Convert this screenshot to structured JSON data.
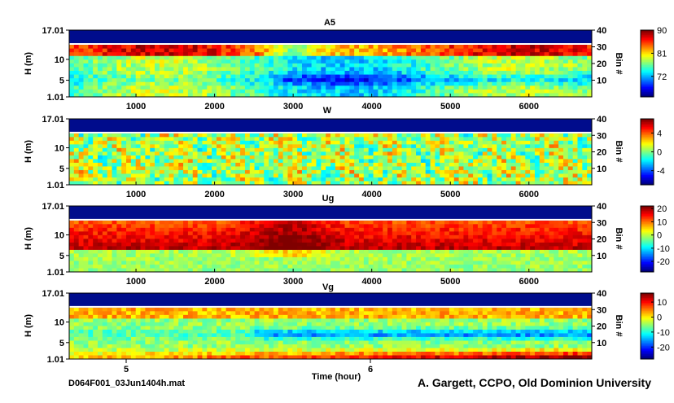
{
  "figure": {
    "filename": "D064F001_03Jun1404h.mat",
    "credit": "A. Gargett, CCPO, Old Dominion University",
    "time_axis_label": "Time (hour)",
    "time_ticks": [
      "5",
      "6"
    ]
  },
  "chart_data": [
    {
      "type": "heatmap",
      "title": "A5",
      "ylabel": "H (m)",
      "ylabel_right": "Bin #",
      "ylim": [
        1.01,
        17.01
      ],
      "yticks": [
        "17.01",
        "10",
        "5",
        "1.01"
      ],
      "yticks_right": [
        "40",
        "30",
        "20",
        "10"
      ],
      "xticks": [
        "1000",
        "2000",
        "3000",
        "4000",
        "5000",
        "6000"
      ],
      "colorbar_ticks": [
        "90",
        "81",
        "72"
      ],
      "clim": [
        64,
        90
      ]
    },
    {
      "type": "heatmap",
      "title": "W",
      "ylabel": "H (m)",
      "ylabel_right": "Bin #",
      "ylim": [
        1.01,
        17.01
      ],
      "yticks": [
        "17.01",
        "10",
        "5",
        "1.01"
      ],
      "yticks_right": [
        "40",
        "30",
        "20",
        "10"
      ],
      "xticks": [
        "1000",
        "2000",
        "3000",
        "4000",
        "5000",
        "6000"
      ],
      "colorbar_ticks": [
        "4",
        "0",
        "-4"
      ],
      "clim": [
        -7,
        7
      ]
    },
    {
      "type": "heatmap",
      "title": "Ug",
      "ylabel": "H (m)",
      "ylabel_right": "Bin #",
      "ylim": [
        1.01,
        17.01
      ],
      "yticks": [
        "17.01",
        "10",
        "5",
        "1.01"
      ],
      "yticks_right": [
        "40",
        "30",
        "20",
        "10"
      ],
      "xticks": [
        "1000",
        "2000",
        "3000",
        "4000",
        "5000",
        "6000"
      ],
      "colorbar_ticks": [
        "20",
        "10",
        "0",
        "-10",
        "-20"
      ],
      "clim": [
        -28,
        22
      ]
    },
    {
      "type": "heatmap",
      "title": "Vg",
      "ylabel": "H (m)",
      "ylabel_right": "Bin #",
      "ylim": [
        1.01,
        17.01
      ],
      "yticks": [
        "17.01",
        "10",
        "5",
        "1.01"
      ],
      "yticks_right": [
        "40",
        "30",
        "20",
        "10"
      ],
      "xticks": [],
      "colorbar_ticks": [
        "10",
        "0",
        "-10",
        "-20"
      ],
      "clim": [
        -28,
        16
      ]
    }
  ],
  "colors": {
    "masked": "#000c8c",
    "axis": "#000000"
  }
}
